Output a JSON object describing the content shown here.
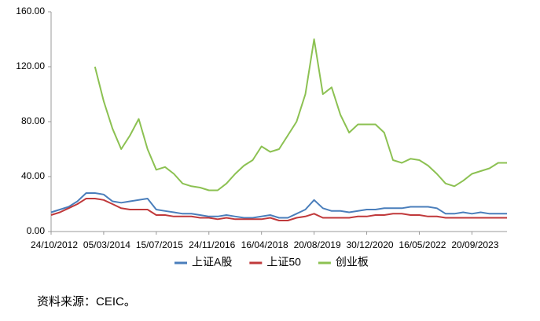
{
  "chart_data": {
    "type": "line",
    "categories": [
      "24/10/2012",
      null,
      null,
      null,
      null,
      null,
      "05/03/2014",
      null,
      null,
      null,
      null,
      null,
      "15/07/2015",
      null,
      null,
      null,
      null,
      null,
      "24/11/2016",
      null,
      null,
      null,
      null,
      null,
      "16/04/2018",
      null,
      null,
      null,
      null,
      null,
      "20/08/2019",
      null,
      null,
      null,
      null,
      null,
      "30/12/2020",
      null,
      null,
      null,
      null,
      null,
      "16/05/2022",
      null,
      null,
      null,
      null,
      null,
      "20/09/2023",
      null,
      null,
      null,
      null
    ],
    "series": [
      {
        "name": "上证A股",
        "color": "#4a7ebb",
        "values": [
          14,
          16,
          18,
          22,
          28,
          28,
          27,
          22,
          21,
          22,
          23,
          24,
          16,
          15,
          14,
          13,
          13,
          12,
          11,
          11,
          12,
          11,
          10,
          10,
          11,
          12,
          10,
          10,
          13,
          16,
          23,
          17,
          15,
          15,
          14,
          15,
          16,
          16,
          17,
          17,
          17,
          18,
          18,
          18,
          17,
          13,
          13,
          14,
          13,
          14,
          13,
          13,
          13
        ]
      },
      {
        "name": "上证50",
        "color": "#c0393b",
        "values": [
          12,
          14,
          17,
          20,
          24,
          24,
          23,
          20,
          17,
          16,
          16,
          16,
          12,
          12,
          11,
          11,
          11,
          10,
          10,
          9,
          10,
          9,
          9,
          9,
          9,
          10,
          8,
          8,
          10,
          11,
          13,
          10,
          10,
          10,
          10,
          11,
          11,
          12,
          12,
          13,
          13,
          12,
          12,
          11,
          11,
          10,
          10,
          10,
          10,
          10,
          10,
          10,
          10
        ]
      },
      {
        "name": "创业板",
        "color": "#8cc152",
        "values": [
          null,
          null,
          null,
          null,
          null,
          120,
          95,
          75,
          60,
          70,
          82,
          60,
          45,
          47,
          42,
          35,
          33,
          32,
          30,
          30,
          35,
          42,
          48,
          52,
          62,
          58,
          60,
          70,
          80,
          100,
          140,
          100,
          105,
          85,
          72,
          78,
          78,
          78,
          72,
          52,
          50,
          53,
          52,
          48,
          42,
          35,
          33,
          37,
          42,
          44,
          46,
          50,
          50
        ]
      }
    ],
    "ylim": [
      0,
      160
    ],
    "yticks": [
      {
        "value": 0,
        "label": "0.00"
      },
      {
        "value": 40,
        "label": "40.00"
      },
      {
        "value": 80,
        "label": "80.00"
      },
      {
        "value": 120,
        "label": "120.00"
      },
      {
        "value": 160,
        "label": "160.00"
      }
    ],
    "legend": "bottom",
    "source": "资料来源：CEIC。"
  }
}
